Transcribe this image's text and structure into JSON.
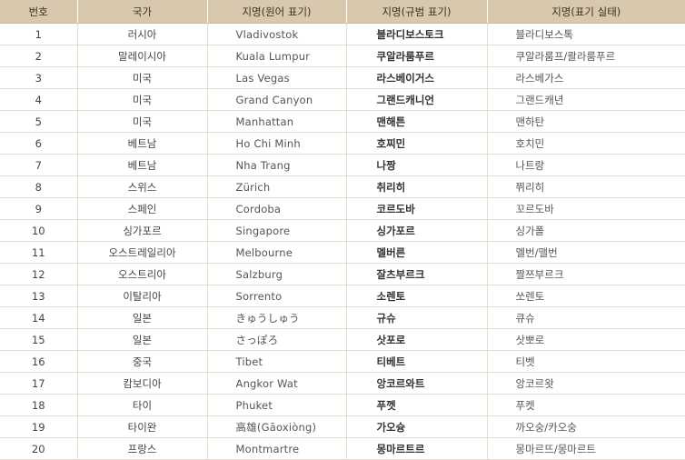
{
  "headers": [
    "번호",
    "국가",
    "지명(원어 표기)",
    "지명(규범 표기)",
    "지명(표기 실태)"
  ],
  "rows": [
    {
      "num": "1",
      "country": "러시아",
      "original": "Vladivostok",
      "standard": "블라디보스토크",
      "actual": "블라디보스톡"
    },
    {
      "num": "2",
      "country": "말레이시아",
      "original": "Kuala Lumpur",
      "standard": "쿠알라룸푸르",
      "actual": "쿠알라룸프/콸라룸푸르"
    },
    {
      "num": "3",
      "country": "미국",
      "original": "Las Vegas",
      "standard": "라스베이거스",
      "actual": "라스베가스"
    },
    {
      "num": "4",
      "country": "미국",
      "original": "Grand Canyon",
      "standard": "그랜드캐니언",
      "actual": "그랜드캐년"
    },
    {
      "num": "5",
      "country": "미국",
      "original": "Manhattan",
      "standard": "맨해튼",
      "actual": "맨하탄"
    },
    {
      "num": "6",
      "country": "베트남",
      "original": "Ho Chi Minh",
      "standard": "호찌민",
      "actual": "호치민"
    },
    {
      "num": "7",
      "country": "베트남",
      "original": "Nha Trang",
      "standard": "나짱",
      "actual": "나트랑"
    },
    {
      "num": "8",
      "country": "스위스",
      "original": "Zürich",
      "standard": "취리히",
      "actual": "쮜리히"
    },
    {
      "num": "9",
      "country": "스페인",
      "original": "Cordoba",
      "standard": "코르도바",
      "actual": "꼬르도바"
    },
    {
      "num": "10",
      "country": "싱가포르",
      "original": "Singapore",
      "standard": "싱가포르",
      "actual": "싱가폴"
    },
    {
      "num": "11",
      "country": "오스트레일리아",
      "original": "Melbourne",
      "standard": "멜버른",
      "actual": "멜번/맬번"
    },
    {
      "num": "12",
      "country": "오스트리아",
      "original": "Salzburg",
      "standard": "잘츠부르크",
      "actual": "짤쯔부르크"
    },
    {
      "num": "13",
      "country": "이탈리아",
      "original": "Sorrento",
      "standard": "소렌토",
      "actual": "쏘렌토"
    },
    {
      "num": "14",
      "country": "일본",
      "original": "きゅうしゅう",
      "standard": "규슈",
      "actual": "큐슈"
    },
    {
      "num": "15",
      "country": "일본",
      "original": "さっぽろ",
      "standard": "삿포로",
      "actual": "삿뽀로"
    },
    {
      "num": "16",
      "country": "중국",
      "original": "Tibet",
      "standard": "티베트",
      "actual": "티벳"
    },
    {
      "num": "17",
      "country": "캄보디아",
      "original": "Angkor Wat",
      "standard": "앙코르와트",
      "actual": "앙코르왓"
    },
    {
      "num": "18",
      "country": "타이",
      "original": "Phuket",
      "standard": "푸껫",
      "actual": "푸켓"
    },
    {
      "num": "19",
      "country": "타이완",
      "original": "高雄(Gāoxiòng)",
      "standard": "가오슝",
      "actual": "까오숭/카오숭"
    },
    {
      "num": "20",
      "country": "프랑스",
      "original": "Montmartre",
      "standard": "몽마르트르",
      "actual": "몽마르뜨/몽마르트"
    }
  ]
}
